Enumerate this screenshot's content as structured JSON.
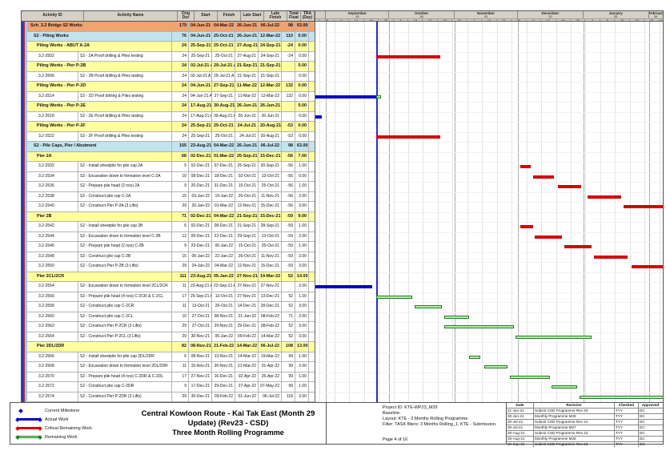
{
  "table": {
    "columns": [
      "Activity ID",
      "Activity Name",
      "Orig Dur",
      "Start",
      "Finish",
      "Late Start",
      "Late Finish",
      "Total Float",
      "TRA (Day)"
    ]
  },
  "rows": [
    {
      "type": "wbs1",
      "id": "",
      "name": "Sch_3.2 Bridge S2 Works",
      "dur": "179",
      "start": "04-Jun-21 A",
      "finish": "04-Mar-22",
      "ls": "26-Jun-21",
      "lf": "06-Jul-22",
      "tf": "98",
      "tra": "63.00"
    },
    {
      "type": "wbs2",
      "id": "",
      "name": "S2 - Piling Works",
      "dur": "76",
      "start": "04-Jun-21 A",
      "finish": "25-Oct-21",
      "ls": "26-Jun-21",
      "lf": "12-Mar-22",
      "tf": "110",
      "tra": "0.00"
    },
    {
      "type": "wbs3",
      "id": "",
      "name": "Piling Works - ABUT A-2A",
      "dur": "24",
      "start": "25-Sep-21",
      "finish": "25-Oct-21",
      "ls": "27-Aug-21",
      "lf": "24-Sep-21",
      "tf": "-24",
      "tra": "0.00"
    },
    {
      "type": "task",
      "id": "3.2-2502",
      "name": "S2 - 2A Proof drilling & Piles testing",
      "dur": "24",
      "start": "25-Sep-21",
      "finish": "25-Oct-21",
      "ls": "27-Aug-21",
      "lf": "24-Sep-21",
      "tf": "-24",
      "tra": "0.00"
    },
    {
      "type": "wbs3",
      "id": "",
      "name": "Piling Works - Pier P-2B",
      "dur": "24",
      "start": "02-Jul-21 A",
      "finish": "29-Jul-21 A",
      "ls": "21-Sep-21",
      "lf": "21-Sep-21",
      "tf": "",
      "tra": "0.00"
    },
    {
      "type": "task",
      "id": "3.2-2506",
      "name": "S2 - 2B Proof drilling & Piles testing",
      "dur": "24",
      "start": "02-Jul-21 A",
      "finish": "29-Jul-21 A",
      "ls": "21-Sep-21",
      "lf": "21-Sep-21",
      "tf": "",
      "tra": "0.00"
    },
    {
      "type": "wbs3",
      "id": "",
      "name": "Piling Works - Pier P-2D",
      "dur": "24",
      "start": "04-Jun-21 A",
      "finish": "27-Sep-21",
      "ls": "11-Mar-22",
      "lf": "12-Mar-22",
      "tf": "132",
      "tra": "0.00"
    },
    {
      "type": "task",
      "id": "3.2-2514",
      "name": "S2 - 2D Proof drilling & Piles testing",
      "dur": "24",
      "start": "04-Jun-21 A",
      "finish": "27-Sep-21",
      "ls": "11-Mar-22",
      "lf": "12-Mar-22",
      "tf": "132",
      "tra": "0.00"
    },
    {
      "type": "wbs3",
      "id": "",
      "name": "Piling Works - Pier P-2E",
      "dur": "24",
      "start": "17-Aug-21 A",
      "finish": "30-Aug-21 A",
      "ls": "26-Jun-21",
      "lf": "26-Jun-21",
      "tf": "",
      "tra": "0.00"
    },
    {
      "type": "task",
      "id": "3.2-2518",
      "name": "S2 - 2E Proof drilling & Piles testing",
      "dur": "24",
      "start": "17-Aug-21 A",
      "finish": "30-Aug-21 A",
      "ls": "26-Jun-21",
      "lf": "26-Jun-21",
      "tf": "",
      "tra": "0.00"
    },
    {
      "type": "wbs3",
      "id": "",
      "name": "Piling Works - Pier P-2F",
      "dur": "24",
      "start": "25-Sep-21",
      "finish": "25-Oct-21",
      "ls": "24-Jul-21",
      "lf": "20-Aug-21",
      "tf": "-53",
      "tra": "0.00"
    },
    {
      "type": "task",
      "id": "3.2-2522",
      "name": "S2 - 2F Proof drilling & Piles testing",
      "dur": "24",
      "start": "25-Sep-21",
      "finish": "25-Oct-21",
      "ls": "24-Jul-21",
      "lf": "20-Aug-21",
      "tf": "-53",
      "tra": "0.00"
    },
    {
      "type": "wbs2",
      "id": "",
      "name": "S2 - Pile Caps, Pier / Abutment",
      "dur": "155",
      "start": "23-Aug-21 A",
      "finish": "04-Mar-22",
      "ls": "26-Jun-21",
      "lf": "06-Jul-22",
      "tf": "98",
      "tra": "63.00"
    },
    {
      "type": "wbs3",
      "id": "",
      "name": "Pier 2A",
      "dur": "68",
      "start": "02-Dec-21",
      "finish": "01-Mar-22",
      "ls": "25-Sep-21",
      "lf": "15-Dec-21",
      "tf": "-56",
      "tra": "7.00"
    },
    {
      "type": "task",
      "id": "3.2-2532",
      "name": "S2 - Install sheetpile for pile cap 2A",
      "dur": "5",
      "start": "02-Dec-21",
      "finish": "07-Dec-21",
      "ls": "25-Sep-21",
      "lf": "30-Sep-21",
      "tf": "-56",
      "tra": "1.00"
    },
    {
      "type": "task",
      "id": "3.2-2534",
      "name": "S2 - Excavation down to formation level C-2A",
      "dur": "10",
      "start": "08-Dec-21",
      "finish": "18-Dec-21",
      "ls": "02-Oct-21",
      "lf": "13-Oct-21",
      "tf": "-56",
      "tra": "0.00"
    },
    {
      "type": "task",
      "id": "3.2-2536",
      "name": "S2 - Prepare pile head (2 nos) 2A",
      "dur": "9",
      "start": "20-Dec-21",
      "finish": "31-Dec-21",
      "ls": "15-Oct-21",
      "lf": "25-Oct-21",
      "tf": "-56",
      "tra": "1.00"
    },
    {
      "type": "task",
      "id": "3.2-2538",
      "name": "S2 - Construct pile cap C-2A",
      "dur": "15",
      "start": "03-Jan-22",
      "finish": "19-Jan-22",
      "ls": "26-Oct-21",
      "lf": "11-Nov-21",
      "tf": "-56",
      "tra": "2.00"
    },
    {
      "type": "task",
      "id": "3.2-2540",
      "name": "S2 - Construct Pier P-2A (3 Lifts)",
      "dur": "29",
      "start": "20-Jan-22",
      "finish": "01-Mar-22",
      "ls": "12-Nov-21",
      "lf": "15-Dec-21",
      "tf": "-56",
      "tra": "3.00"
    },
    {
      "type": "wbs3",
      "id": "",
      "name": "Pier 2B",
      "dur": "71",
      "start": "02-Dec-21",
      "finish": "04-Mar-22",
      "ls": "21-Sep-21",
      "lf": "15-Dec-21",
      "tf": "-59",
      "tra": "9.00"
    },
    {
      "type": "task",
      "id": "3.2-2542",
      "name": "S2 - Install sheetpile for pile cap 2B",
      "dur": "6",
      "start": "02-Dec-21",
      "finish": "08-Dec-21",
      "ls": "21-Sep-21",
      "lf": "28-Sep-21",
      "tf": "-59",
      "tra": "1.00"
    },
    {
      "type": "task",
      "id": "3.2-2544",
      "name": "S2 - Excavation down to formation level C-2B",
      "dur": "12",
      "start": "09-Dec-21",
      "finish": "22-Dec-21",
      "ls": "29-Sep-21",
      "lf": "13-Oct-21",
      "tf": "-59",
      "tra": "2.00"
    },
    {
      "type": "task",
      "id": "3.2-2546",
      "name": "S2 - Prepare pile head (2 nos) C-2B",
      "dur": "9",
      "start": "23-Dec-21",
      "finish": "05-Jan-22",
      "ls": "15-Oct-21",
      "lf": "25-Oct-21",
      "tf": "-59",
      "tra": "1.00"
    },
    {
      "type": "task",
      "id": "3.2-2548",
      "name": "S2 - Construct pile cap C-2B",
      "dur": "15",
      "start": "06-Jan-22",
      "finish": "22-Jan-22",
      "ls": "26-Oct-21",
      "lf": "11-Nov-21",
      "tf": "-59",
      "tra": "2.00"
    },
    {
      "type": "task",
      "id": "3.2-2550",
      "name": "S2 - Construct Pier P-2B (3 Lifts)",
      "dur": "29",
      "start": "24-Jan-22",
      "finish": "04-Mar-22",
      "ls": "12-Nov-21",
      "lf": "15-Dec-21",
      "tf": "-59",
      "tra": "3.00"
    },
    {
      "type": "wbs3",
      "id": "",
      "name": "Pier 2CL/2CR",
      "dur": "111",
      "start": "23-Aug-21 A",
      "finish": "05-Jan-22",
      "ls": "27-Nov-21",
      "lf": "14-Mar-22",
      "tf": "52",
      "tra": "14.00"
    },
    {
      "type": "task",
      "id": "3.2-2554",
      "name": "S2 - Excavation down to formation level 2CL/2CR",
      "dur": "11",
      "start": "23-Aug-21 A",
      "finish": "23-Sep-21 A",
      "ls": "27-Nov-21",
      "lf": "27-Nov-21",
      "tf": "",
      "tra": "2.00"
    },
    {
      "type": "task",
      "id": "3.2-2556",
      "name": "S2 - Prepare pile head (4 nos) C-2CR & C-2CL",
      "dur": "17",
      "start": "25-Sep-21 A",
      "finish": "12-Oct-21",
      "ls": "27-Nov-21",
      "lf": "13-Dec-21",
      "tf": "52",
      "tra": "1.00"
    },
    {
      "type": "task",
      "id": "3.2-2558",
      "name": "S2 - Construct pile cap C-2CR",
      "dur": "11",
      "start": "13-Oct-21",
      "finish": "26-Oct-21",
      "ls": "14-Dec-21",
      "lf": "28-Dec-21",
      "tf": "52",
      "tra": "3.00"
    },
    {
      "type": "task",
      "id": "3.2-2560",
      "name": "S2 - Construct pile cap C-2CL",
      "dur": "10",
      "start": "27-Oct-21",
      "finish": "08-Nov-21",
      "ls": "21-Jan-22",
      "lf": "08-Feb-22",
      "tf": "71",
      "tra": "2.00"
    },
    {
      "type": "task",
      "id": "3.2-2562",
      "name": "S2 - Construct Pier P-2CR (3 Lifts)",
      "dur": "29",
      "start": "27-Oct-21",
      "finish": "29-Nov-21",
      "ls": "29-Dec-21",
      "lf": "08-Feb-22",
      "tf": "52",
      "tra": "3.00"
    },
    {
      "type": "task",
      "id": "3.2-2564",
      "name": "S2 - Construct Pier P-2CL (3 Lifts)",
      "dur": "29",
      "start": "30-Nov-21",
      "finish": "05-Jan-22",
      "ls": "09-Feb-22",
      "lf": "14-Mar-22",
      "tf": "52",
      "tra": "3.00"
    },
    {
      "type": "wbs3",
      "id": "",
      "name": "Pier 2DL/2DR",
      "dur": "82",
      "start": "08-Nov-21",
      "finish": "21-Feb-22",
      "ls": "14-Mar-22",
      "lf": "06-Jul-22",
      "tf": "108",
      "tra": "13.00"
    },
    {
      "type": "task",
      "id": "3.2-2566",
      "name": "S2 - Install sheetpile for pile cap 2DL/2DR",
      "dur": "6",
      "start": "08-Nov-21",
      "finish": "13-Nov-21",
      "ls": "14-Mar-22",
      "lf": "19-Mar-22",
      "tf": "99",
      "tra": "1.00"
    },
    {
      "type": "task",
      "id": "3.2-2568",
      "name": "S2 - Excavation down to formation level 2DL/2DR",
      "dur": "11",
      "start": "15-Nov-21",
      "finish": "26-Nov-21",
      "ls": "21-Mar-22",
      "lf": "01-Apr-22",
      "tf": "99",
      "tra": "2.00"
    },
    {
      "type": "task",
      "id": "3.2-2570",
      "name": "S2 - Prepare pile head (4 nos) C-2DR & C-2DL",
      "dur": "17",
      "start": "27-Nov-21",
      "finish": "16-Dec-21",
      "ls": "02-Apr-22",
      "lf": "26-Apr-22",
      "tf": "99",
      "tra": "1.00"
    },
    {
      "type": "task",
      "id": "3.2-2572",
      "name": "S2 - Construct pile cap C-2DR",
      "dur": "9",
      "start": "17-Dec-21",
      "finish": "29-Dec-21",
      "ls": "27-Apr-22",
      "lf": "07-May-22",
      "tf": "99",
      "tra": "1.00"
    },
    {
      "type": "task",
      "id": "3.2-2574",
      "name": "S2 - Construct Pier P-2DR (3 Lifts)",
      "dur": "29",
      "start": "30-Dec-21",
      "finish": "09-Feb-22",
      "ls": "01-Jun-22",
      "lf": "06-Jul-22",
      "tf": "118",
      "tra": "3.00"
    }
  ],
  "chart_data": {
    "type": "table",
    "subtype": "gantt",
    "title": "Three Month Rolling Programme",
    "data_date": "2021-09-25",
    "timeline": {
      "start": "2021-08-27",
      "end": "2022-02-08",
      "months": [
        {
          "label": "September",
          "num": "29",
          "start": "2021-09-01"
        },
        {
          "label": "October",
          "num": "30",
          "start": "2021-10-01"
        },
        {
          "label": "November",
          "num": "31",
          "start": "2021-11-01"
        },
        {
          "label": "December",
          "num": "32",
          "start": "2021-12-01"
        },
        {
          "label": "January",
          "num": "33",
          "start": "2022-01-01"
        },
        {
          "label": "February",
          "num": "34",
          "start": "2022-02-01"
        }
      ],
      "week_ticks": [
        29,
        5,
        12,
        19,
        26,
        3,
        10,
        17,
        24,
        31,
        7,
        14,
        21,
        28,
        5,
        12,
        19,
        26,
        2,
        9,
        16,
        23,
        30,
        6
      ]
    },
    "bars": [
      {
        "id": "3.2-2502",
        "segs": [
          {
            "kind": "critical",
            "s": "2021-09-25",
            "e": "2021-10-25"
          }
        ]
      },
      {
        "id": "3.2-2506",
        "segs": [
          {
            "kind": "actual",
            "s": "2021-07-02",
            "e": "2021-07-29"
          }
        ]
      },
      {
        "id": "3.2-2514",
        "segs": [
          {
            "kind": "actual",
            "s": "2021-06-04",
            "e": "2021-09-25"
          },
          {
            "kind": "remaining",
            "s": "2021-09-25",
            "e": "2021-09-27"
          }
        ]
      },
      {
        "id": "3.2-2518",
        "segs": [
          {
            "kind": "actual",
            "s": "2021-08-17",
            "e": "2021-08-30"
          }
        ]
      },
      {
        "id": "3.2-2522",
        "segs": [
          {
            "kind": "critical",
            "s": "2021-09-25",
            "e": "2021-10-25"
          }
        ]
      },
      {
        "id": "3.2-2532",
        "segs": [
          {
            "kind": "critical",
            "s": "2021-12-02",
            "e": "2021-12-07"
          }
        ]
      },
      {
        "id": "3.2-2534",
        "segs": [
          {
            "kind": "critical",
            "s": "2021-12-08",
            "e": "2021-12-18"
          }
        ]
      },
      {
        "id": "3.2-2536",
        "segs": [
          {
            "kind": "critical",
            "s": "2021-12-20",
            "e": "2021-12-31"
          }
        ]
      },
      {
        "id": "3.2-2538",
        "segs": [
          {
            "kind": "critical",
            "s": "2022-01-03",
            "e": "2022-01-19"
          }
        ]
      },
      {
        "id": "3.2-2540",
        "segs": [
          {
            "kind": "critical",
            "s": "2022-01-20",
            "e": "2022-03-01"
          }
        ]
      },
      {
        "id": "3.2-2542",
        "segs": [
          {
            "kind": "critical",
            "s": "2021-12-02",
            "e": "2021-12-08"
          }
        ]
      },
      {
        "id": "3.2-2544",
        "segs": [
          {
            "kind": "critical",
            "s": "2021-12-09",
            "e": "2021-12-22"
          }
        ]
      },
      {
        "id": "3.2-2546",
        "segs": [
          {
            "kind": "critical",
            "s": "2021-12-23",
            "e": "2022-01-05"
          }
        ]
      },
      {
        "id": "3.2-2548",
        "segs": [
          {
            "kind": "critical",
            "s": "2022-01-06",
            "e": "2022-01-22"
          }
        ]
      },
      {
        "id": "3.2-2550",
        "segs": [
          {
            "kind": "critical",
            "s": "2022-01-24",
            "e": "2022-03-04"
          }
        ]
      },
      {
        "id": "3.2-2554",
        "segs": [
          {
            "kind": "actual",
            "s": "2021-08-23",
            "e": "2021-09-23"
          }
        ]
      },
      {
        "id": "3.2-2556",
        "segs": [
          {
            "kind": "remaining",
            "s": "2021-09-25",
            "e": "2021-10-12"
          }
        ]
      },
      {
        "id": "3.2-2558",
        "segs": [
          {
            "kind": "remaining",
            "s": "2021-10-13",
            "e": "2021-10-26"
          }
        ]
      },
      {
        "id": "3.2-2560",
        "segs": [
          {
            "kind": "remaining",
            "s": "2021-10-27",
            "e": "2021-11-08"
          }
        ]
      },
      {
        "id": "3.2-2562",
        "segs": [
          {
            "kind": "remaining",
            "s": "2021-10-27",
            "e": "2021-11-29"
          }
        ]
      },
      {
        "id": "3.2-2564",
        "segs": [
          {
            "kind": "remaining",
            "s": "2021-11-30",
            "e": "2022-01-05"
          }
        ]
      },
      {
        "id": "3.2-2566",
        "segs": [
          {
            "kind": "remaining",
            "s": "2021-11-08",
            "e": "2021-11-13"
          }
        ]
      },
      {
        "id": "3.2-2568",
        "segs": [
          {
            "kind": "remaining",
            "s": "2021-11-15",
            "e": "2021-11-26"
          }
        ]
      },
      {
        "id": "3.2-2570",
        "segs": [
          {
            "kind": "remaining",
            "s": "2021-11-27",
            "e": "2021-12-16"
          }
        ]
      },
      {
        "id": "3.2-2572",
        "segs": [
          {
            "kind": "remaining",
            "s": "2021-12-17",
            "e": "2021-12-29"
          }
        ]
      },
      {
        "id": "3.2-2574",
        "segs": [
          {
            "kind": "remaining",
            "s": "2021-12-30",
            "e": "2022-02-09"
          }
        ]
      }
    ]
  },
  "legend": {
    "items": [
      {
        "icon": "milestone",
        "label": "Current Milestone"
      },
      {
        "icon": "actual",
        "label": "Actual Work"
      },
      {
        "icon": "critical",
        "label": "Critical Remaining Work"
      },
      {
        "icon": "remaining",
        "label": "Remaining Work"
      }
    ]
  },
  "footer": {
    "title_line1": "Central Kowloon Route - Kai Tak East (Month 29 Update) (Rev23 - CSD)",
    "title_line2": "Three Month Rolling Programme",
    "info": [
      "Project ID: KTE-WP23_M29",
      "Baseline:",
      "Layout: KTE - 3 Months Rolling Programme",
      "Filter: TASK filters: 3 Months Rolling_1, KTE - Submission."
    ],
    "page": "Page 4 of 16",
    "revisions": {
      "columns": [
        "Date",
        "Revision",
        "Checked",
        "Approved"
      ],
      "rows": [
        [
          "21-Jun-21",
          "Submit CSD Programme Rev 20",
          "TYY",
          "DC"
        ],
        [
          "30-Jun-21",
          "Monthly Programme M26",
          "TYY",
          "DC"
        ],
        [
          "20-Jul-21",
          "Submit CSD Programme Rev 21",
          "TYY",
          "DC"
        ],
        [
          "30-Jul-21",
          "Monthly Programme M27",
          "TYY",
          "DC"
        ],
        [
          "20-Aug-21",
          "Submit CSD Programme Rev 22",
          "TYY",
          "DC"
        ],
        [
          "25-Aug-21",
          "Monthly Programme M28",
          "TYY",
          "DC"
        ],
        [
          "20-Sep-21",
          "Submit CSD Programme Rev 23",
          "TYY",
          "DC"
        ]
      ]
    }
  },
  "colors": {
    "wbs1_bg": "#f2a36e",
    "wbs2_bg": "#c2e4ee",
    "wbs3_bg": "#ffff9e",
    "header_bg": "#d5d1c7",
    "actual": "#0000ce",
    "critical": "#d40000",
    "remaining_fill": "#b7eaae",
    "remaining_border": "#1e821e",
    "data_date_line": "#2b2bcc",
    "stripe1": "#2233bb",
    "stripe2": "#cc2222",
    "stripe3": "#99ccee"
  }
}
